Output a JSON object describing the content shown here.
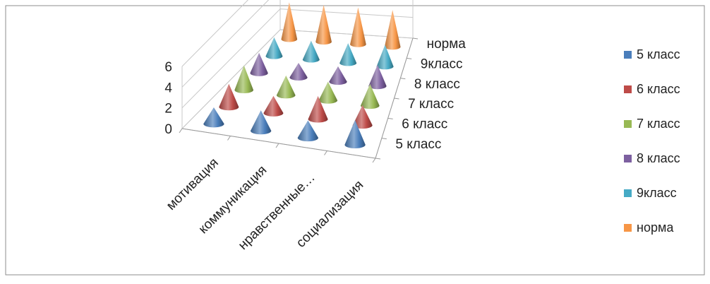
{
  "chart_data": {
    "type": "3d-cone",
    "title": "",
    "xlabel": "",
    "ylabel": "",
    "zlim": [
      0,
      6
    ],
    "z_ticks": [
      "0",
      "2",
      "4",
      "6"
    ],
    "categories": [
      "мотивация",
      "коммуникация",
      "нравственные…",
      "социализация"
    ],
    "depth_labels": [
      "5 класс",
      "6 класс",
      "7 класс",
      "8 класс",
      "9класс",
      "норма"
    ],
    "legend_position": "right",
    "grid": true,
    "series": [
      {
        "name": "5 класс",
        "color": "#4a7ebb",
        "values": [
          1.6,
          2.0,
          1.7,
          2.4
        ]
      },
      {
        "name": "6 класс",
        "color": "#be4b48",
        "values": [
          2.3,
          1.7,
          2.3,
          2.0
        ]
      },
      {
        "name": "7 класс",
        "color": "#98b954",
        "values": [
          2.5,
          2.0,
          1.9,
          2.2
        ]
      },
      {
        "name": "8 класс",
        "color": "#7d60a0",
        "values": [
          2.1,
          1.5,
          1.6,
          2.2
        ]
      },
      {
        "name": "9класс",
        "color": "#46aac5",
        "values": [
          2.0,
          2.0,
          2.1,
          2.3
        ]
      },
      {
        "name": "норма",
        "color": "#f79646",
        "values": [
          4.0,
          4.0,
          4.0,
          4.0
        ]
      }
    ]
  }
}
